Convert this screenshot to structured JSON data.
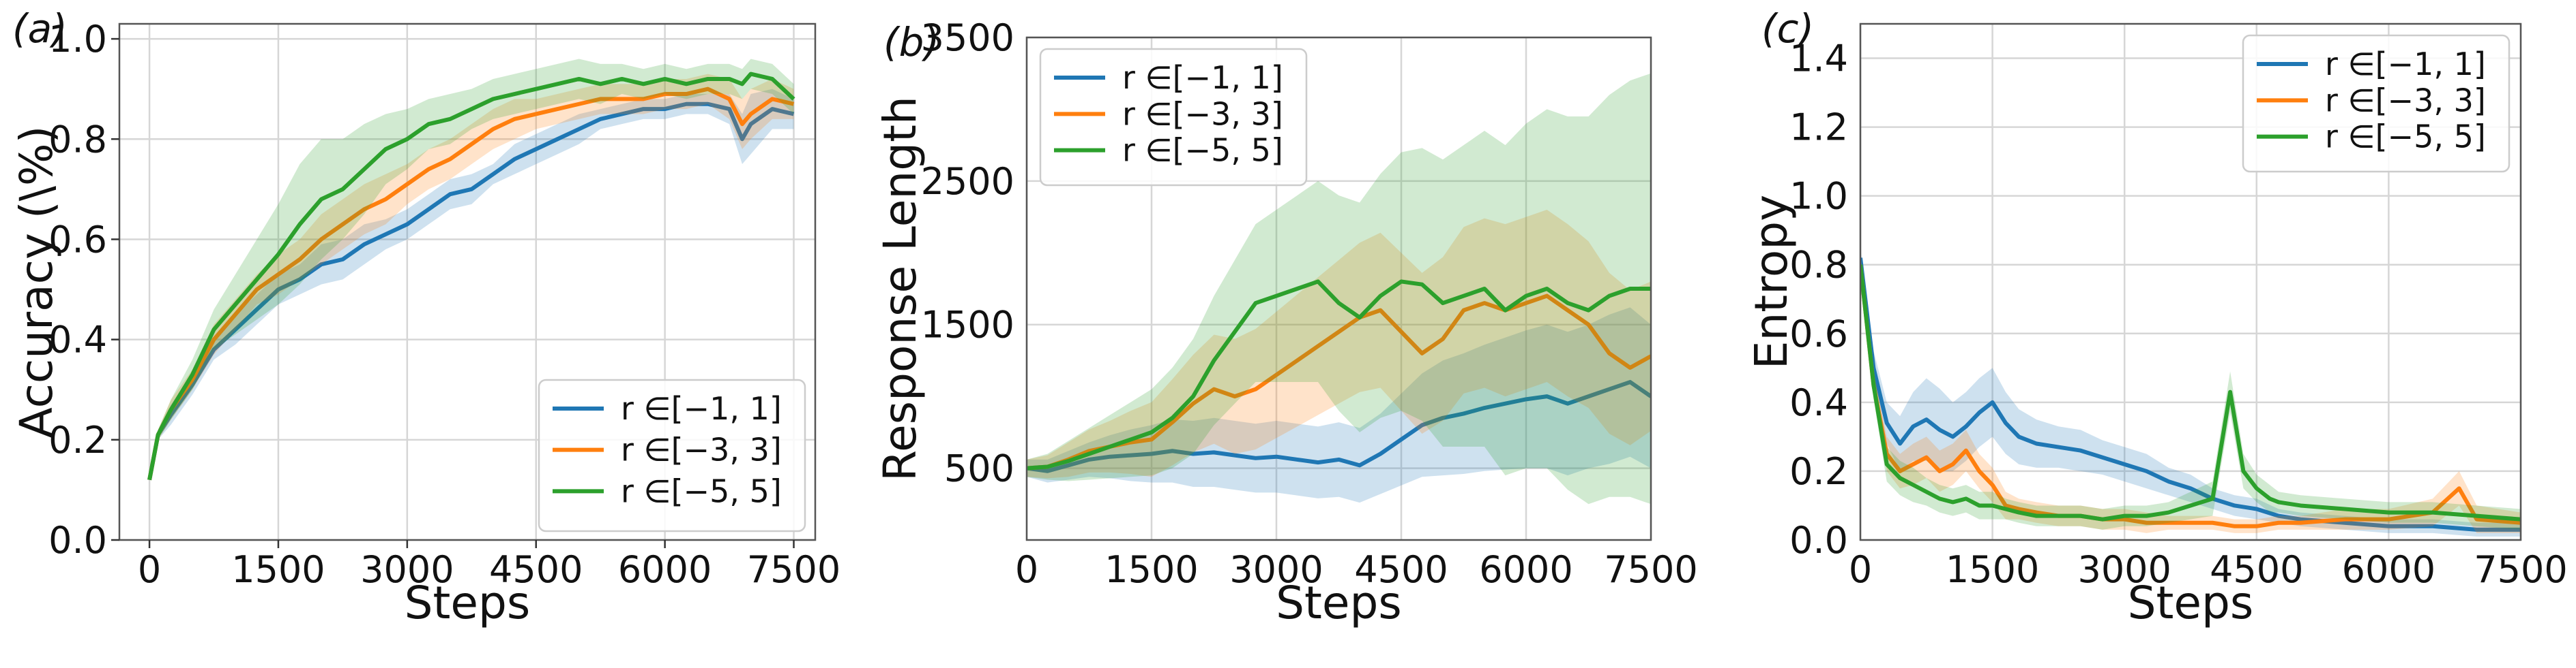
{
  "colors": {
    "blue": "#1f77b4",
    "orange": "#ff7f0e",
    "green": "#2ca02c"
  },
  "chart_data": [
    {
      "type": "line",
      "panel_tag": "(a)",
      "xlabel": "Steps",
      "ylabel": "Accuracy (\\%)",
      "xlim": [
        -350,
        7750
      ],
      "ylim": [
        0.0,
        1.03
      ],
      "xticks": [
        0,
        1500,
        3000,
        4500,
        6000,
        7500
      ],
      "xtick_labels": [
        "0",
        "1500",
        "3000",
        "4500",
        "6000",
        "7500"
      ],
      "yticks": [
        0.0,
        0.2,
        0.4,
        0.6,
        0.8,
        1.0
      ],
      "ytick_labels": [
        "0.0",
        "0.2",
        "0.4",
        "0.6",
        "0.8",
        "1.0"
      ],
      "grid": true,
      "legend_position": "lower-right",
      "series": [
        {
          "name": "r ∈[−1, 1]",
          "color": "#1f77b4",
          "x": [
            0,
            100,
            250,
            500,
            750,
            1000,
            1250,
            1500,
            1750,
            2000,
            2250,
            2500,
            2750,
            3000,
            3250,
            3500,
            3750,
            4000,
            4250,
            4500,
            4750,
            5000,
            5250,
            5500,
            5750,
            6000,
            6250,
            6500,
            6750,
            6900,
            7000,
            7250,
            7500
          ],
          "y": [
            0.12,
            0.21,
            0.25,
            0.31,
            0.38,
            0.42,
            0.46,
            0.5,
            0.52,
            0.55,
            0.56,
            0.59,
            0.61,
            0.63,
            0.66,
            0.69,
            0.7,
            0.73,
            0.76,
            0.78,
            0.8,
            0.82,
            0.84,
            0.85,
            0.86,
            0.86,
            0.87,
            0.87,
            0.86,
            0.8,
            0.83,
            0.86,
            0.85
          ],
          "band": [
            0.0,
            0.01,
            0.02,
            0.02,
            0.02,
            0.03,
            0.03,
            0.03,
            0.03,
            0.04,
            0.04,
            0.04,
            0.03,
            0.03,
            0.03,
            0.03,
            0.03,
            0.02,
            0.03,
            0.03,
            0.03,
            0.03,
            0.02,
            0.02,
            0.02,
            0.02,
            0.02,
            0.02,
            0.03,
            0.05,
            0.06,
            0.04,
            0.03
          ]
        },
        {
          "name": "r ∈[−3, 3]",
          "color": "#ff7f0e",
          "x": [
            0,
            100,
            250,
            500,
            750,
            1000,
            1250,
            1500,
            1750,
            2000,
            2250,
            2500,
            2750,
            3000,
            3250,
            3500,
            3750,
            4000,
            4250,
            4500,
            4750,
            5000,
            5250,
            5500,
            5750,
            6000,
            6250,
            6500,
            6750,
            6900,
            7000,
            7250,
            7500
          ],
          "y": [
            0.12,
            0.21,
            0.26,
            0.32,
            0.4,
            0.45,
            0.5,
            0.53,
            0.56,
            0.6,
            0.63,
            0.66,
            0.68,
            0.71,
            0.74,
            0.76,
            0.79,
            0.82,
            0.84,
            0.85,
            0.86,
            0.87,
            0.88,
            0.88,
            0.88,
            0.89,
            0.89,
            0.9,
            0.88,
            0.83,
            0.85,
            0.88,
            0.87
          ],
          "band": [
            0.0,
            0.01,
            0.02,
            0.02,
            0.03,
            0.03,
            0.03,
            0.04,
            0.04,
            0.05,
            0.05,
            0.05,
            0.05,
            0.04,
            0.04,
            0.04,
            0.04,
            0.04,
            0.04,
            0.03,
            0.03,
            0.03,
            0.03,
            0.03,
            0.03,
            0.03,
            0.03,
            0.03,
            0.04,
            0.05,
            0.05,
            0.04,
            0.03
          ]
        },
        {
          "name": "r ∈[−5, 5]",
          "color": "#2ca02c",
          "x": [
            0,
            100,
            250,
            500,
            750,
            1000,
            1250,
            1500,
            1750,
            2000,
            2250,
            2500,
            2750,
            3000,
            3250,
            3500,
            3750,
            4000,
            4250,
            4500,
            4750,
            5000,
            5250,
            5500,
            5750,
            6000,
            6250,
            6500,
            6750,
            6900,
            7000,
            7250,
            7500
          ],
          "y": [
            0.12,
            0.21,
            0.26,
            0.33,
            0.42,
            0.47,
            0.52,
            0.57,
            0.63,
            0.68,
            0.7,
            0.74,
            0.78,
            0.8,
            0.83,
            0.84,
            0.86,
            0.88,
            0.89,
            0.9,
            0.91,
            0.92,
            0.91,
            0.92,
            0.91,
            0.92,
            0.91,
            0.92,
            0.92,
            0.91,
            0.93,
            0.92,
            0.88
          ],
          "band": [
            0.0,
            0.01,
            0.02,
            0.03,
            0.04,
            0.06,
            0.08,
            0.1,
            0.12,
            0.12,
            0.1,
            0.09,
            0.07,
            0.06,
            0.05,
            0.05,
            0.04,
            0.04,
            0.04,
            0.04,
            0.04,
            0.04,
            0.04,
            0.03,
            0.03,
            0.03,
            0.03,
            0.03,
            0.03,
            0.03,
            0.03,
            0.03,
            0.03
          ]
        }
      ]
    },
    {
      "type": "line",
      "panel_tag": "(b)",
      "xlabel": "Steps",
      "ylabel": "Response Length",
      "xlim": [
        0,
        7500
      ],
      "ylim": [
        0,
        3500
      ],
      "xticks": [
        0,
        1500,
        3000,
        4500,
        6000,
        7500
      ],
      "xtick_labels": [
        "0",
        "1500",
        "3000",
        "4500",
        "6000",
        "7500"
      ],
      "yticks": [
        500,
        1500,
        2500,
        3500
      ],
      "ytick_labels": [
        "500",
        "1500",
        "2500",
        "3500"
      ],
      "grid": true,
      "legend_position": "upper-left",
      "series": [
        {
          "name": "r ∈[−1, 1]",
          "color": "#1f77b4",
          "x": [
            0,
            250,
            500,
            750,
            1000,
            1250,
            1500,
            1750,
            2000,
            2250,
            2500,
            2750,
            3000,
            3250,
            3500,
            3750,
            4000,
            4250,
            4500,
            4750,
            5000,
            5250,
            5500,
            5750,
            6000,
            6250,
            6500,
            6750,
            7000,
            7250,
            7500
          ],
          "y": [
            500,
            480,
            520,
            560,
            580,
            590,
            600,
            620,
            600,
            610,
            590,
            570,
            580,
            560,
            540,
            560,
            520,
            600,
            700,
            800,
            850,
            880,
            920,
            950,
            980,
            1000,
            950,
            1000,
            1050,
            1100,
            1000
          ],
          "band": [
            60,
            80,
            100,
            120,
            150,
            180,
            200,
            220,
            230,
            240,
            240,
            240,
            250,
            250,
            250,
            260,
            260,
            280,
            320,
            360,
            400,
            420,
            440,
            460,
            480,
            500,
            500,
            500,
            520,
            520,
            500
          ]
        },
        {
          "name": "r ∈[−3, 3]",
          "color": "#ff7f0e",
          "x": [
            0,
            250,
            500,
            750,
            1000,
            1250,
            1500,
            1750,
            2000,
            2250,
            2500,
            2750,
            3000,
            3250,
            3500,
            3750,
            4000,
            4250,
            4500,
            4750,
            5000,
            5250,
            5500,
            5750,
            6000,
            6250,
            6500,
            6750,
            7000,
            7250,
            7500
          ],
          "y": [
            500,
            510,
            560,
            620,
            650,
            680,
            700,
            820,
            950,
            1050,
            1000,
            1050,
            1150,
            1250,
            1350,
            1450,
            1550,
            1600,
            1450,
            1300,
            1400,
            1600,
            1650,
            1600,
            1650,
            1700,
            1600,
            1500,
            1300,
            1200,
            1280
          ],
          "band": [
            60,
            80,
            120,
            150,
            180,
            220,
            260,
            300,
            340,
            380,
            400,
            420,
            440,
            460,
            480,
            500,
            520,
            540,
            550,
            560,
            570,
            580,
            590,
            600,
            600,
            600,
            600,
            580,
            560,
            540,
            520
          ]
        },
        {
          "name": "r ∈[−5, 5]",
          "color": "#2ca02c",
          "x": [
            0,
            250,
            500,
            750,
            1000,
            1250,
            1500,
            1750,
            2000,
            2250,
            2500,
            2750,
            3000,
            3250,
            3500,
            3750,
            4000,
            4250,
            4500,
            4750,
            5000,
            5250,
            5500,
            5750,
            6000,
            6250,
            6500,
            6750,
            7000,
            7250,
            7500
          ],
          "y": [
            500,
            510,
            550,
            600,
            650,
            700,
            750,
            850,
            1000,
            1250,
            1450,
            1650,
            1700,
            1750,
            1800,
            1650,
            1550,
            1700,
            1800,
            1780,
            1650,
            1700,
            1750,
            1600,
            1700,
            1750,
            1650,
            1600,
            1700,
            1750,
            1750
          ],
          "band": [
            60,
            90,
            140,
            180,
            220,
            260,
            300,
            350,
            400,
            450,
            500,
            550,
            600,
            650,
            700,
            750,
            800,
            850,
            900,
            950,
            1000,
            1050,
            1100,
            1150,
            1200,
            1250,
            1300,
            1350,
            1400,
            1450,
            1500
          ]
        }
      ]
    },
    {
      "type": "line",
      "panel_tag": "(c)",
      "xlabel": "Steps",
      "ylabel": "Entropy",
      "xlim": [
        0,
        7500
      ],
      "ylim": [
        0.0,
        1.5
      ],
      "xticks": [
        0,
        1500,
        3000,
        4500,
        6000,
        7500
      ],
      "xtick_labels": [
        "0",
        "1500",
        "3000",
        "4500",
        "6000",
        "7500"
      ],
      "yticks": [
        0.0,
        0.2,
        0.4,
        0.6,
        0.8,
        1.0,
        1.2,
        1.4
      ],
      "ytick_labels": [
        "0.0",
        "0.2",
        "0.4",
        "0.6",
        "0.8",
        "1.0",
        "1.2",
        "1.4"
      ],
      "grid": true,
      "legend_position": "upper-right",
      "series": [
        {
          "name": "r ∈[−1, 1]",
          "color": "#1f77b4",
          "x": [
            0,
            150,
            300,
            450,
            600,
            750,
            900,
            1050,
            1200,
            1350,
            1500,
            1650,
            1800,
            2000,
            2250,
            2500,
            2750,
            3000,
            3250,
            3500,
            3750,
            4000,
            4250,
            4500,
            4750,
            5000,
            5500,
            6000,
            6500,
            7000,
            7500
          ],
          "y": [
            0.82,
            0.5,
            0.34,
            0.28,
            0.33,
            0.35,
            0.32,
            0.3,
            0.33,
            0.37,
            0.4,
            0.34,
            0.3,
            0.28,
            0.27,
            0.26,
            0.24,
            0.22,
            0.2,
            0.17,
            0.15,
            0.12,
            0.1,
            0.09,
            0.07,
            0.06,
            0.05,
            0.04,
            0.04,
            0.03,
            0.03
          ],
          "band": [
            0.03,
            0.05,
            0.06,
            0.08,
            0.1,
            0.12,
            0.12,
            0.1,
            0.1,
            0.1,
            0.1,
            0.09,
            0.08,
            0.07,
            0.06,
            0.06,
            0.05,
            0.05,
            0.05,
            0.04,
            0.04,
            0.03,
            0.03,
            0.03,
            0.02,
            0.02,
            0.02,
            0.02,
            0.02,
            0.02,
            0.02
          ]
        },
        {
          "name": "r ∈[−3, 3]",
          "color": "#ff7f0e",
          "x": [
            0,
            150,
            300,
            450,
            600,
            750,
            900,
            1050,
            1200,
            1350,
            1500,
            1650,
            1800,
            2000,
            2250,
            2500,
            2750,
            3000,
            3250,
            3500,
            3750,
            4000,
            4250,
            4500,
            4750,
            5000,
            5500,
            6000,
            6500,
            6800,
            7000,
            7500
          ],
          "y": [
            0.8,
            0.45,
            0.25,
            0.2,
            0.22,
            0.24,
            0.2,
            0.22,
            0.26,
            0.2,
            0.16,
            0.1,
            0.09,
            0.08,
            0.07,
            0.07,
            0.06,
            0.06,
            0.05,
            0.05,
            0.05,
            0.05,
            0.04,
            0.04,
            0.05,
            0.05,
            0.06,
            0.06,
            0.08,
            0.15,
            0.06,
            0.05
          ],
          "band": [
            0.03,
            0.04,
            0.05,
            0.05,
            0.06,
            0.06,
            0.06,
            0.06,
            0.06,
            0.05,
            0.05,
            0.04,
            0.03,
            0.03,
            0.03,
            0.03,
            0.03,
            0.03,
            0.03,
            0.02,
            0.02,
            0.02,
            0.02,
            0.02,
            0.02,
            0.02,
            0.03,
            0.03,
            0.04,
            0.05,
            0.04,
            0.03
          ]
        },
        {
          "name": "r ∈[−5, 5]",
          "color": "#2ca02c",
          "x": [
            0,
            150,
            300,
            450,
            600,
            750,
            900,
            1050,
            1200,
            1350,
            1500,
            1650,
            1800,
            2000,
            2250,
            2500,
            2750,
            3000,
            3250,
            3500,
            3750,
            4000,
            4200,
            4350,
            4500,
            4650,
            4750,
            5000,
            5500,
            6000,
            6500,
            7000,
            7500
          ],
          "y": [
            0.8,
            0.45,
            0.22,
            0.18,
            0.16,
            0.14,
            0.12,
            0.11,
            0.12,
            0.1,
            0.1,
            0.09,
            0.08,
            0.07,
            0.07,
            0.07,
            0.06,
            0.07,
            0.07,
            0.08,
            0.1,
            0.12,
            0.43,
            0.2,
            0.15,
            0.12,
            0.11,
            0.1,
            0.09,
            0.08,
            0.08,
            0.07,
            0.06
          ],
          "band": [
            0.03,
            0.04,
            0.05,
            0.05,
            0.05,
            0.04,
            0.04,
            0.04,
            0.04,
            0.04,
            0.04,
            0.03,
            0.03,
            0.03,
            0.03,
            0.03,
            0.03,
            0.03,
            0.03,
            0.03,
            0.04,
            0.05,
            0.06,
            0.05,
            0.04,
            0.04,
            0.03,
            0.03,
            0.03,
            0.03,
            0.03,
            0.03,
            0.03
          ]
        }
      ]
    }
  ]
}
